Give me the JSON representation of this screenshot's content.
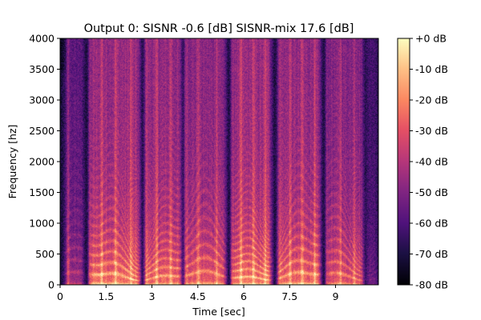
{
  "chart_data": {
    "type": "heatmap",
    "title": "Output 0: SISNR -0.6 [dB] SISNR-mix 17.6 [dB]",
    "xlabel": "Time [sec]",
    "ylabel": "Frequency [hz]",
    "xlim": [
      0,
      10.4
    ],
    "ylim": [
      0,
      4000
    ],
    "x_ticks": [
      0,
      1.5,
      3,
      4.5,
      6,
      7.5,
      9
    ],
    "x_tick_labels": [
      "0",
      "1.5",
      "3",
      "4.5",
      "6",
      "7.5",
      "9"
    ],
    "y_ticks": [
      0,
      500,
      1000,
      1500,
      2000,
      2500,
      3000,
      3500,
      4000
    ],
    "y_tick_labels": [
      "0",
      "500",
      "1000",
      "1500",
      "2000",
      "2500",
      "3000",
      "3500",
      "4000"
    ],
    "colorbar": {
      "colormap": "magma",
      "range_db": [
        -80,
        0
      ],
      "ticks": [
        0,
        -10,
        -20,
        -30,
        -40,
        -50,
        -60,
        -70,
        -80
      ],
      "tick_labels": [
        "+0 dB",
        "-10 dB",
        "-20 dB",
        "-30 dB",
        "-40 dB",
        "-50 dB",
        "-60 dB",
        "-70 dB",
        "-80 dB"
      ]
    },
    "grid": false
  }
}
